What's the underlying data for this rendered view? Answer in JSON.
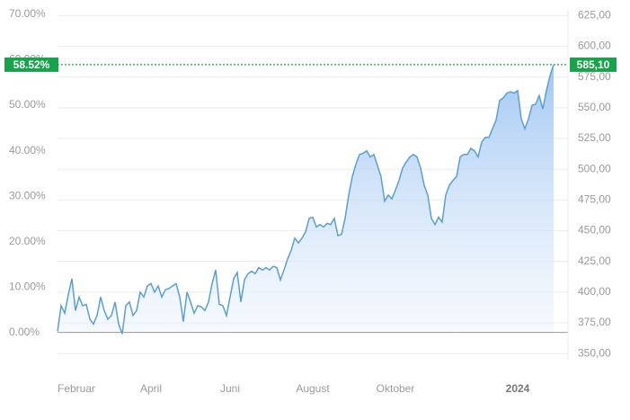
{
  "chart_data": {
    "type": "line",
    "series": [
      {
        "color": "#5a9fd4",
        "axis": "y2",
        "values": [
          368,
          389,
          383,
          398,
          411,
          385,
          396,
          389,
          390,
          378,
          374,
          381,
          396,
          385,
          378,
          381,
          392,
          374,
          366,
          389,
          392,
          381,
          385,
          400,
          396,
          405,
          407,
          400,
          405,
          396,
          402,
          403,
          405,
          407,
          396,
          376,
          400,
          392,
          383,
          389,
          388,
          385,
          392,
          407,
          418,
          390,
          389,
          381,
          396,
          411,
          416,
          392,
          410,
          415,
          417,
          415,
          420,
          418,
          420,
          418,
          421,
          420,
          410,
          418,
          427,
          434,
          444,
          440,
          444,
          449,
          460,
          461,
          453,
          455,
          453,
          456,
          455,
          460,
          446,
          447,
          460,
          479,
          494,
          504,
          512,
          513,
          515,
          510,
          512,
          503,
          494,
          474,
          479,
          476,
          483,
          491,
          501,
          506,
          510,
          512,
          510,
          501,
          487,
          479,
          460,
          455,
          461,
          457,
          479,
          487,
          491,
          494,
          510,
          512,
          512,
          517,
          515,
          510,
          522,
          526,
          526,
          533,
          540,
          556,
          558,
          562,
          563,
          562,
          564,
          541,
          533,
          541,
          552,
          553,
          560,
          549,
          564,
          576,
          585.1
        ]
      }
    ],
    "xlim": [
      0,
      138
    ],
    "xticks": [
      {
        "value": 0,
        "label": "Februar"
      },
      {
        "value": 26,
        "label": "April"
      },
      {
        "value": 48,
        "label": "Juni"
      },
      {
        "value": 71,
        "label": "August"
      },
      {
        "value": 94,
        "label": "Oktober"
      },
      {
        "value": 128,
        "label": "2024"
      }
    ],
    "ylim": [
      -6,
      70
    ],
    "yticks": [
      {
        "value": 0,
        "label": "0.00%"
      },
      {
        "value": 10,
        "label": "10.00%"
      },
      {
        "value": 20,
        "label": "20.00%"
      },
      {
        "value": 30,
        "label": "30.00%"
      },
      {
        "value": 40,
        "label": "40.00%"
      },
      {
        "value": 50,
        "label": "50.00%"
      },
      {
        "value": 60,
        "label": "60.00%"
      },
      {
        "value": 70,
        "label": "70.00%"
      }
    ],
    "y2lim": [
      345,
      626
    ],
    "y2ticks": [
      {
        "value": 350,
        "label": "350,00"
      },
      {
        "value": 375,
        "label": "375,00"
      },
      {
        "value": 400,
        "label": "400,00"
      },
      {
        "value": 425,
        "label": "425,00"
      },
      {
        "value": 450,
        "label": "450,00"
      },
      {
        "value": 475,
        "label": "475,00"
      },
      {
        "value": 500,
        "label": "500,00"
      },
      {
        "value": 525,
        "label": "525,00"
      },
      {
        "value": 550,
        "label": "550,00"
      },
      {
        "value": 575,
        "label": "575,00"
      },
      {
        "value": 600,
        "label": "600,00"
      },
      {
        "value": 625,
        "label": "625,00"
      }
    ],
    "grid": true,
    "current": {
      "value": 585.1,
      "label": "585,10",
      "percent": 58.52,
      "percent_label": "58.52%"
    }
  }
}
